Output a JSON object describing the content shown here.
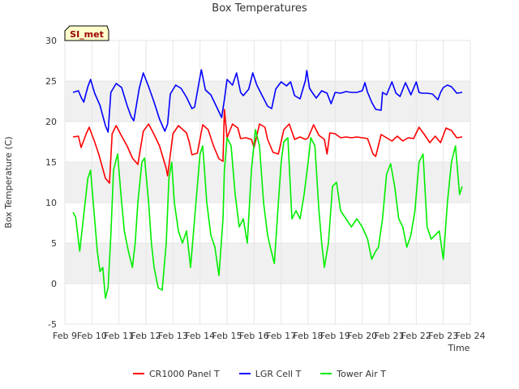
{
  "chart_data": {
    "type": "line",
    "title": "Box Temperatures",
    "xlabel": "Time",
    "ylabel": "Box Temperature (C)",
    "ylim": [
      -5,
      30
    ],
    "xlim": [
      9,
      24
    ],
    "yticks": [
      -5,
      0,
      5,
      10,
      15,
      20,
      25,
      30
    ],
    "xticks": [
      9,
      10,
      11,
      12,
      13,
      14,
      15,
      16,
      17,
      18,
      19,
      20,
      21,
      22,
      23,
      24
    ],
    "xtick_labels": [
      "Feb 9",
      "Feb 10",
      "Feb 11",
      "Feb 12",
      "Feb 13",
      "Feb 14",
      "Feb 15",
      "Feb 16",
      "Feb 17",
      "Feb 18",
      "Feb 19",
      "Feb 20",
      "Feb 21",
      "Feb 22",
      "Feb 23",
      "Feb 24"
    ],
    "grid": true,
    "legend_position": "bottom-center",
    "annotation": "SI_met",
    "series": [
      {
        "name": "CR1000 Panel T",
        "color": "#ff0000",
        "x": [
          9.3,
          9.5,
          9.6,
          9.8,
          9.9,
          10.1,
          10.25,
          10.5,
          10.65,
          10.75,
          10.9,
          11.1,
          11.3,
          11.5,
          11.7,
          11.9,
          12.1,
          12.3,
          12.5,
          12.75,
          12.8,
          13.0,
          13.2,
          13.5,
          13.6,
          13.7,
          13.9,
          14.1,
          14.3,
          14.5,
          14.7,
          14.85,
          14.9,
          15.0,
          15.2,
          15.4,
          15.5,
          15.7,
          15.9,
          16.0,
          16.2,
          16.4,
          16.5,
          16.7,
          16.9,
          17.1,
          17.3,
          17.5,
          17.7,
          17.9,
          18.0,
          18.2,
          18.4,
          18.6,
          18.7,
          18.8,
          19.0,
          19.2,
          19.4,
          19.6,
          19.8,
          20.0,
          20.2,
          20.4,
          20.5,
          20.7,
          20.9,
          21.1,
          21.3,
          21.5,
          21.7,
          21.9,
          22.1,
          22.3,
          22.5,
          22.7,
          22.9,
          23.1,
          23.3,
          23.5,
          23.7
        ],
        "values": [
          18.1,
          18.2,
          16.8,
          18.6,
          19.3,
          17.5,
          16.0,
          13.0,
          12.4,
          18.5,
          19.5,
          18.2,
          17.0,
          15.5,
          14.7,
          18.8,
          19.7,
          18.4,
          17.0,
          14.2,
          13.3,
          18.5,
          19.5,
          18.6,
          17.5,
          15.9,
          16.1,
          19.6,
          19.0,
          17.0,
          15.4,
          15.1,
          21.5,
          18.0,
          19.7,
          19.2,
          17.9,
          18.0,
          17.8,
          16.8,
          19.7,
          19.3,
          17.8,
          16.2,
          16.0,
          19.0,
          19.7,
          17.8,
          18.1,
          17.8,
          18.0,
          19.6,
          18.3,
          17.8,
          16.0,
          18.6,
          18.5,
          18.0,
          18.1,
          18.0,
          18.1,
          18.0,
          17.9,
          16.0,
          15.7,
          18.4,
          18.0,
          17.6,
          18.2,
          17.6,
          18.0,
          17.9,
          19.3,
          18.4,
          17.4,
          18.2,
          17.4,
          19.2,
          18.9,
          18.0,
          18.1
        ]
      },
      {
        "name": "LGR Cell T",
        "color": "#0000ff",
        "x": [
          9.3,
          9.5,
          9.6,
          9.7,
          9.85,
          9.95,
          10.1,
          10.3,
          10.5,
          10.6,
          10.7,
          10.9,
          11.1,
          11.3,
          11.45,
          11.55,
          11.75,
          11.9,
          12.1,
          12.3,
          12.5,
          12.7,
          12.8,
          12.9,
          13.1,
          13.3,
          13.5,
          13.7,
          13.8,
          13.95,
          14.05,
          14.2,
          14.4,
          14.6,
          14.8,
          14.9,
          15.0,
          15.2,
          15.35,
          15.5,
          15.6,
          15.8,
          15.95,
          16.1,
          16.3,
          16.5,
          16.65,
          16.8,
          17.0,
          17.2,
          17.35,
          17.5,
          17.7,
          17.9,
          17.95,
          18.05,
          18.15,
          18.3,
          18.5,
          18.7,
          18.85,
          19.0,
          19.2,
          19.4,
          19.6,
          19.8,
          20.0,
          20.1,
          20.2,
          20.35,
          20.5,
          20.7,
          20.75,
          20.9,
          21.1,
          21.25,
          21.4,
          21.6,
          21.8,
          22.0,
          22.1,
          22.2,
          22.4,
          22.6,
          22.8,
          22.9,
          23.0,
          23.15,
          23.3,
          23.5,
          23.7
        ],
        "values": [
          23.6,
          23.8,
          23.0,
          22.4,
          24.3,
          25.2,
          23.5,
          22.0,
          19.5,
          18.7,
          23.6,
          24.7,
          24.2,
          22.0,
          20.6,
          20.1,
          24.1,
          26.0,
          24.3,
          22.4,
          20.3,
          18.8,
          19.7,
          23.4,
          24.5,
          24.1,
          23.0,
          21.6,
          21.8,
          24.6,
          26.4,
          23.9,
          23.3,
          21.9,
          20.5,
          22.7,
          25.2,
          24.5,
          26.0,
          23.6,
          23.2,
          24.0,
          26.0,
          24.5,
          23.2,
          21.9,
          21.6,
          24.0,
          24.9,
          24.4,
          24.9,
          23.2,
          22.8,
          25.1,
          26.3,
          24.1,
          23.6,
          22.9,
          23.8,
          23.5,
          22.2,
          23.6,
          23.5,
          23.7,
          23.6,
          23.6,
          23.8,
          24.8,
          23.6,
          22.4,
          21.5,
          21.4,
          23.6,
          23.3,
          24.9,
          23.5,
          23.1,
          24.8,
          23.3,
          24.9,
          23.6,
          23.5,
          23.5,
          23.4,
          22.7,
          23.6,
          24.2,
          24.5,
          24.3,
          23.5,
          23.6
        ]
      },
      {
        "name": "Tower Air T",
        "color": "#00ee00",
        "x": [
          9.3,
          9.4,
          9.55,
          9.7,
          9.85,
          9.95,
          10.05,
          10.2,
          10.3,
          10.4,
          10.5,
          10.6,
          10.7,
          10.8,
          10.95,
          11.1,
          11.2,
          11.35,
          11.5,
          11.6,
          11.7,
          11.85,
          11.95,
          12.1,
          12.2,
          12.3,
          12.45,
          12.6,
          12.75,
          12.85,
          12.95,
          13.05,
          13.2,
          13.35,
          13.5,
          13.65,
          13.75,
          13.9,
          14.0,
          14.1,
          14.25,
          14.4,
          14.55,
          14.7,
          14.85,
          14.9,
          15.0,
          15.15,
          15.3,
          15.45,
          15.6,
          15.75,
          15.9,
          16.05,
          16.2,
          16.35,
          16.5,
          16.6,
          16.75,
          16.9,
          17.0,
          17.1,
          17.25,
          17.4,
          17.55,
          17.7,
          17.85,
          18.0,
          18.1,
          18.25,
          18.4,
          18.5,
          18.6,
          18.75,
          18.9,
          19.05,
          19.2,
          19.4,
          19.6,
          19.8,
          20.0,
          20.2,
          20.35,
          20.5,
          20.6,
          20.75,
          20.9,
          21.05,
          21.2,
          21.35,
          21.5,
          21.65,
          21.8,
          21.95,
          22.1,
          22.25,
          22.4,
          22.55,
          22.7,
          22.85,
          23.0,
          23.15,
          23.3,
          23.45,
          23.6,
          23.7
        ],
        "values": [
          8.8,
          8.2,
          4.0,
          8.5,
          13.0,
          14.0,
          10.0,
          4.0,
          1.5,
          2.0,
          -1.8,
          -0.5,
          6.0,
          14.0,
          16.0,
          10.0,
          6.5,
          4.0,
          2.0,
          5.0,
          10.0,
          15.0,
          15.5,
          10.0,
          5.0,
          2.0,
          -0.5,
          -0.8,
          5.0,
          13.0,
          15.0,
          10.0,
          6.5,
          5.0,
          6.5,
          2.0,
          6.0,
          12.0,
          16.0,
          17.0,
          10.0,
          6.0,
          4.5,
          1.0,
          8.0,
          14.0,
          18.0,
          17.0,
          11.0,
          7.0,
          8.0,
          5.0,
          14.0,
          19.0,
          17.0,
          10.0,
          6.0,
          4.5,
          2.5,
          10.0,
          15.0,
          17.5,
          18.0,
          8.0,
          9.0,
          8.0,
          11.0,
          15.0,
          18.0,
          17.0,
          9.0,
          5.0,
          2.0,
          5.0,
          12.0,
          12.5,
          9.0,
          8.0,
          7.0,
          8.0,
          7.0,
          5.5,
          3.0,
          4.0,
          4.5,
          8.0,
          13.5,
          14.8,
          12.0,
          8.0,
          7.0,
          4.5,
          6.0,
          9.0,
          15.0,
          16.0,
          7.0,
          5.5,
          6.0,
          6.5,
          3.0,
          10.0,
          15.0,
          17.0,
          11.0,
          12.0
        ]
      }
    ]
  }
}
